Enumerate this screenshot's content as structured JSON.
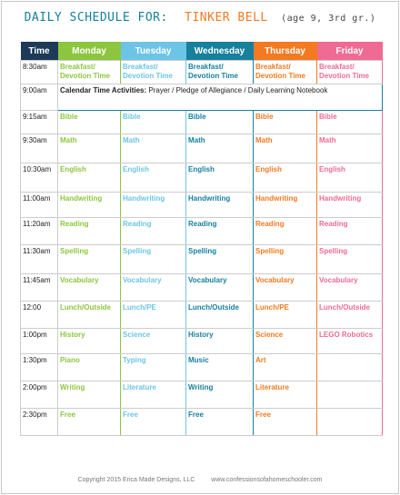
{
  "header": {
    "title": "Daily Schedule for:",
    "name": "Tinker Bell",
    "note": "(age 9, 3rd gr.)"
  },
  "table": {
    "columns": [
      {
        "name": "Time",
        "color": "#1d3a57"
      },
      {
        "name": "Monday",
        "color": "#8cc63e"
      },
      {
        "name": "Tuesday",
        "color": "#6cc5e6"
      },
      {
        "name": "Wednesday",
        "color": "#17809d"
      },
      {
        "name": "Thursday",
        "color": "#f37a20"
      },
      {
        "name": "Friday",
        "color": "#ef6b93"
      }
    ],
    "rows": [
      [
        "8:30am",
        "Breakfast/ Devotion Time",
        "Breakfast/ Devotion Time",
        "Breakfast/ Devotion Time",
        "Breakfast/ Devotion Time",
        "Breakfast/ Devotion Time"
      ],
      {
        "time": "9:00am",
        "label": "Calendar Time Activities:",
        "text": "Prayer / Pledge of Allegiance / Daily Learning Notebook"
      },
      [
        "9:15am",
        "Bible",
        "Bible",
        "Bible",
        "Bible",
        "Bible"
      ],
      [
        "9:30am",
        "Math",
        "Math",
        "Math",
        "Math",
        "Math"
      ],
      [
        "10:30am",
        "English",
        "English",
        "English",
        "English",
        "English"
      ],
      [
        "11:00am",
        "Handwriting",
        "Handwriting",
        "Handwriting",
        "Handwriting",
        "Handwriting"
      ],
      [
        "11:20am",
        "Reading",
        "Reading",
        "Reading",
        "Reading",
        "Reading"
      ],
      [
        "11:30am",
        "Spelling",
        "Spelling",
        "Spelling",
        "Spelling",
        "Spelling"
      ],
      [
        "11:45am",
        "Vocabulary",
        "Vocabulary",
        "Vocabulary",
        "Vocabulary",
        "Vocabulary"
      ],
      [
        "12:00",
        "Lunch/Outside",
        "Lunch/PE",
        "Lunch/Outside",
        "Lunch/PE",
        "Lunch/Outside"
      ],
      [
        "1:00pm",
        "History",
        "Science",
        "History",
        "Science",
        "LEGO Robotics"
      ],
      [
        "1:30pm",
        "Piano",
        "Typing",
        "Music",
        "Art"
      ],
      [
        "2:00pm",
        "Writing",
        "Literature",
        "Writing",
        "Literature"
      ],
      [
        "2:30pm",
        "Free",
        "Free",
        "Free",
        "Free"
      ]
    ]
  },
  "footer": {
    "copyright": "Copyright 2015 Erica Made Designs, LLC",
    "url": "www.confessionsofahomeschooler.com"
  }
}
